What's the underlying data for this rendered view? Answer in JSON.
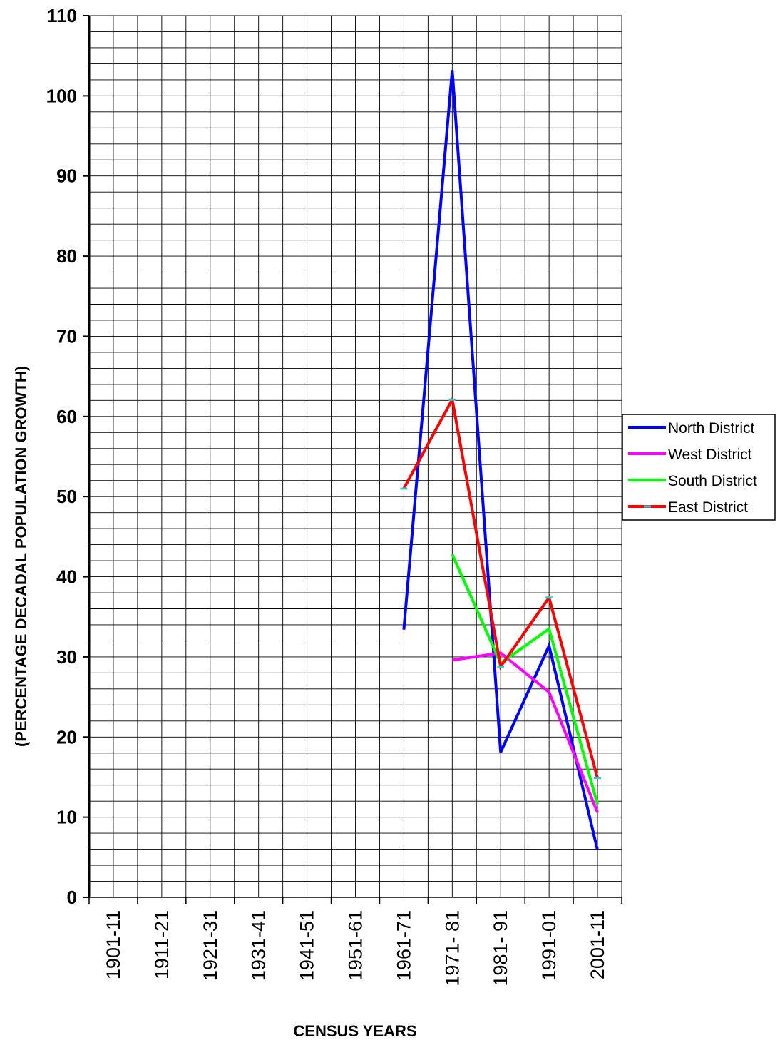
{
  "chart_data": {
    "type": "line",
    "title": "",
    "xlabel": "CENSUS YEARS",
    "ylabel": "(PERCENTAGE DECADAL POPULATION GROWTH)",
    "ylim": [
      0,
      110
    ],
    "y_ticks": [
      0,
      10,
      20,
      30,
      40,
      50,
      60,
      70,
      80,
      90,
      100,
      110
    ],
    "categories": [
      "1901-11",
      "1911-21",
      "1921-31",
      "1931-41",
      "1941-51",
      "1951-61",
      "1961-71",
      "1971- 81",
      "1981- 91",
      "1991-01",
      "2001-11"
    ],
    "grid": true,
    "legend_position": "right",
    "series": [
      {
        "name": "North District",
        "color": "#0000ff",
        "values": [
          null,
          null,
          null,
          null,
          null,
          null,
          33.4,
          103.2,
          18.1,
          31.4,
          5.9
        ]
      },
      {
        "name": "West District",
        "color": "#ff00ff",
        "values": [
          null,
          null,
          null,
          null,
          null,
          null,
          null,
          29.6,
          30.5,
          25.6,
          10.6
        ]
      },
      {
        "name": "South District",
        "color": "#00ff00",
        "values": [
          null,
          null,
          null,
          null,
          null,
          null,
          null,
          42.8,
          29.2,
          33.5,
          11.6
        ]
      },
      {
        "name": "East District",
        "color": "#ff0000",
        "marker_color": "#33cccc",
        "values": [
          null,
          null,
          null,
          null,
          null,
          null,
          51.0,
          62.1,
          28.8,
          37.4,
          14.9
        ]
      }
    ]
  }
}
